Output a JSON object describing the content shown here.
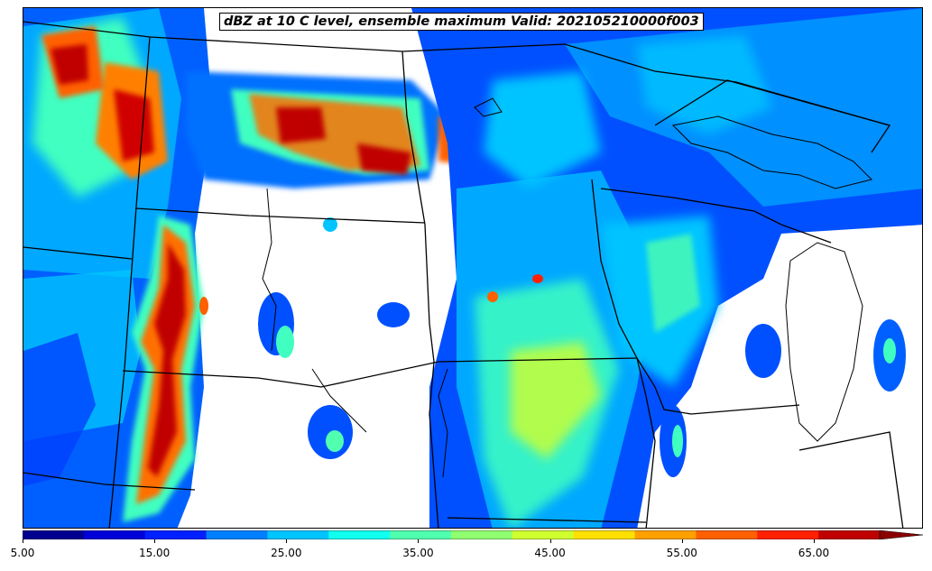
{
  "title": "dBZ at 10 C level, ensemble maximum Valid: 202105210000f003",
  "colorbar": {
    "min": 5,
    "max": 70,
    "step": 5,
    "extend": "max",
    "tick_labels": [
      "5.00",
      "15.00",
      "25.00",
      "35.00",
      "45.00",
      "55.00",
      "65.00"
    ],
    "tick_values": [
      5,
      15,
      25,
      35,
      45,
      55,
      65
    ],
    "colors": [
      "#00008f",
      "#0000d8",
      "#0020ff",
      "#0080ff",
      "#00c4ff",
      "#10ffef",
      "#50ffaf",
      "#90ff6f",
      "#d0ff2f",
      "#ffe000",
      "#ffa000",
      "#ff6000",
      "#ff2000",
      "#c00000"
    ],
    "overflow_color": "#8b0000"
  }
}
